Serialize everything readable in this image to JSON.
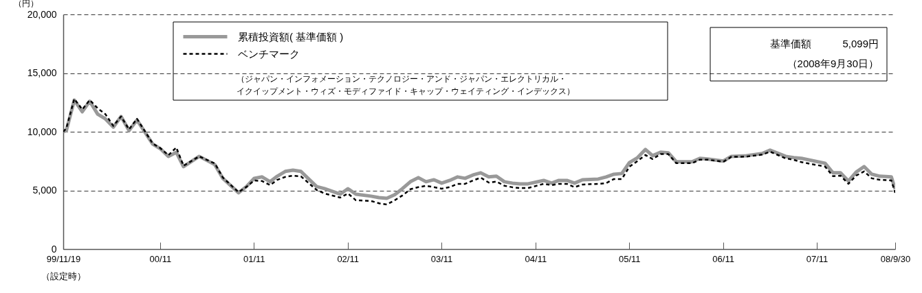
{
  "chart_data": {
    "type": "line",
    "ylabel": "（円）",
    "annotations": [
      "（ジャパン・インフォメーション・テクノロジー・アンド・ジャパン・エレクトリカル・イクイップメント・ウィズ・モディファイド・キャップ・ウェイティング・インデックス）",
      "基準価額　　　5,099円",
      "（2008年9月30日）"
    ],
    "x": [
      "1999-11-19",
      "1999-12",
      "2000-01",
      "2000-02",
      "2000-03",
      "2000-04",
      "2000-05",
      "2000-06",
      "2000-07",
      "2000-08",
      "2000-09",
      "2000-11",
      "2000-12",
      "2001-01",
      "2001-02",
      "2001-03",
      "2001-05",
      "2001-07",
      "2001-08",
      "2001-10",
      "2001-11",
      "2001-12",
      "2002-01",
      "2002-02",
      "2002-03",
      "2002-04",
      "2002-05",
      "2002-06",
      "2002-08",
      "2002-09",
      "2002-11",
      "2002-12",
      "2003-01",
      "2003-03",
      "2003-04",
      "2003-05",
      "2003-06",
      "2003-07",
      "2003-08",
      "2003-09",
      "2003-10",
      "2003-11",
      "2003-12",
      "2004-01",
      "2004-02",
      "2004-03",
      "2004-04",
      "2004-05",
      "2004-06",
      "2004-07",
      "2004-08",
      "2004-09",
      "2004-10",
      "2004-11",
      "2005-01",
      "2005-02",
      "2005-03",
      "2005-04",
      "2005-05",
      "2005-06",
      "2005-08",
      "2005-09",
      "2005-10",
      "2005-11",
      "2005-12",
      "2006-01",
      "2006-02",
      "2006-03",
      "2006-04",
      "2006-05",
      "2006-06",
      "2006-08",
      "2006-09",
      "2006-10",
      "2006-12",
      "2007-01",
      "2007-03",
      "2007-05",
      "2007-06",
      "2007-08",
      "2007-09",
      "2007-10",
      "2008-01",
      "2008-02",
      "2008-03",
      "2008-04",
      "2008-05",
      "2008-06",
      "2008-07",
      "2008-08",
      "2008-09-15",
      "2008-09-30"
    ],
    "series": [
      {
        "name": "累積投資額( 基準価額 )",
        "color": "#999999",
        "line_style": "solid",
        "values": [
          10000,
          10100,
          12700,
          11700,
          12600,
          11500,
          11100,
          10400,
          11300,
          10100,
          11000,
          8950,
          8550,
          7900,
          8250,
          7030,
          7900,
          7200,
          6030,
          4800,
          5330,
          6030,
          6150,
          5740,
          6210,
          6620,
          6730,
          6620,
          5330,
          5150,
          4680,
          5150,
          4680,
          4510,
          4390,
          4330,
          4630,
          5150,
          5740,
          6090,
          5740,
          5910,
          5620,
          5850,
          6150,
          6030,
          6320,
          6500,
          6150,
          6210,
          5740,
          5620,
          5560,
          5560,
          5850,
          5620,
          5850,
          5850,
          5620,
          5910,
          5970,
          6150,
          6380,
          6440,
          7380,
          7790,
          8490,
          7960,
          8260,
          8200,
          7440,
          7440,
          7730,
          7670,
          7500,
          7900,
          7960,
          8140,
          8430,
          7900,
          7790,
          7730,
          7320,
          6500,
          6500,
          5800,
          6560,
          7030,
          6380,
          6210,
          6150,
          5099
        ]
      },
      {
        "name": "ベンチマーク",
        "color": "#000000",
        "line_style": "dashed",
        "values": [
          10000,
          10300,
          12800,
          11900,
          12700,
          12000,
          11500,
          10500,
          11300,
          10200,
          11100,
          9000,
          8600,
          8000,
          8660,
          7100,
          7900,
          7300,
          6100,
          4850,
          5300,
          5850,
          5800,
          5450,
          5900,
          6150,
          6250,
          6200,
          5040,
          4740,
          4390,
          4740,
          4160,
          4100,
          3900,
          3800,
          4160,
          4570,
          5100,
          5280,
          5390,
          5280,
          5150,
          5280,
          5560,
          5560,
          5850,
          6090,
          5670,
          5750,
          5400,
          5270,
          5200,
          5200,
          5560,
          5450,
          5560,
          5560,
          5280,
          5500,
          5560,
          5620,
          5970,
          5970,
          7030,
          7500,
          8020,
          7670,
          8100,
          8100,
          7320,
          7320,
          7620,
          7620,
          7440,
          7860,
          7880,
          8050,
          8300,
          7730,
          7610,
          7410,
          7030,
          6210,
          6260,
          5560,
          6260,
          6620,
          6030,
          5910,
          5850,
          4800
        ]
      }
    ],
    "xlim": [
      "1999-11-19",
      "2008-09-30"
    ],
    "xticks": [
      {
        "value": "1999-11-19",
        "label": "99/11/19\n（設定時）"
      },
      {
        "value": "2000-11-30",
        "label": "00/11"
      },
      {
        "value": "2001-11-30",
        "label": "01/11"
      },
      {
        "value": "2002-11-30",
        "label": "02/11"
      },
      {
        "value": "2003-11-30",
        "label": "03/11"
      },
      {
        "value": "2004-11-30",
        "label": "04/11"
      },
      {
        "value": "2005-11-30",
        "label": "05/11"
      },
      {
        "value": "2006-11-30",
        "label": "06/11"
      },
      {
        "value": "2007-11-30",
        "label": "07/11"
      },
      {
        "value": "2008-09-30",
        "label": "08/9/30"
      }
    ],
    "ylim": [
      0,
      20000
    ],
    "yticks": [
      0,
      {
        "value": 5000,
        "label": "5,000"
      },
      {
        "value": 10000,
        "label": "10,000"
      },
      {
        "value": 15000,
        "label": "15,000"
      },
      {
        "value": 20000,
        "label": "20,000"
      }
    ],
    "grid": "y",
    "legend": "top left"
  }
}
